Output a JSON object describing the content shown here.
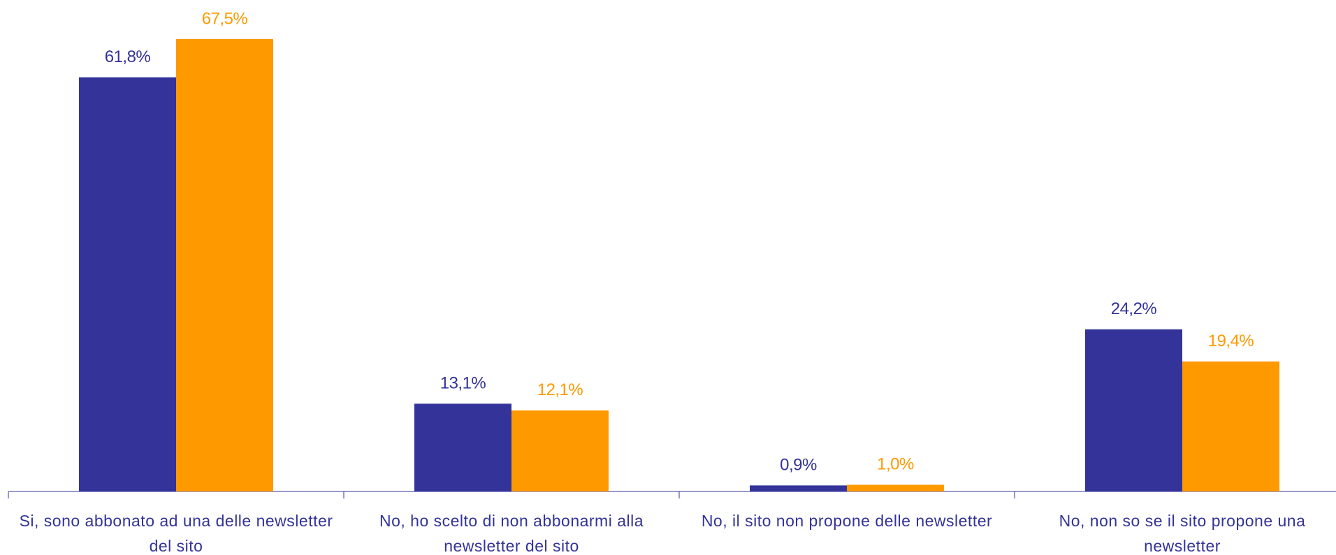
{
  "chart_data": {
    "type": "bar",
    "categories": [
      "Si, sono abbonato ad una delle newsletter del sito",
      "No, ho scelto di non abbonarmi alla newsletter del sito",
      "No, il sito non propone delle newsletter",
      "No, non so se il sito propone una newsletter"
    ],
    "series": [
      {
        "color": "#333399",
        "values": [
          61.8,
          13.1,
          0.9,
          24.2
        ],
        "value_labels": [
          "61,8%",
          "13,1%",
          "0,9%",
          "24,2%"
        ]
      },
      {
        "color": "#ff9900",
        "values": [
          67.5,
          12.1,
          1.0,
          19.4
        ],
        "value_labels": [
          "67,5%",
          "12,1%",
          "1,0%",
          "19,4%"
        ]
      }
    ],
    "ylim": [
      0,
      70
    ]
  }
}
